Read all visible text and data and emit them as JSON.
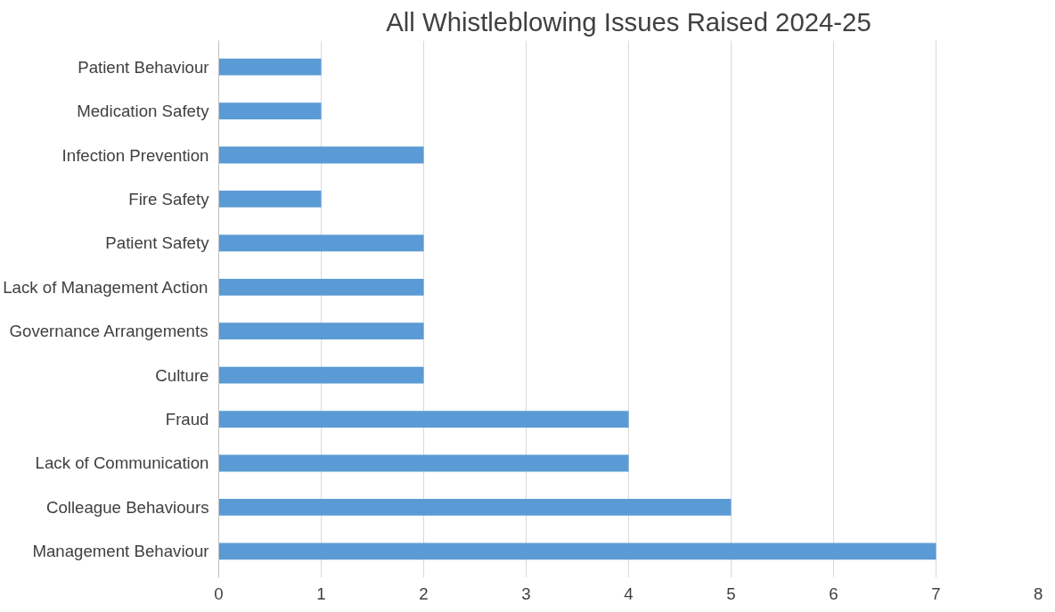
{
  "chart_data": {
    "type": "bar",
    "orientation": "horizontal",
    "title": "All Whistleblowing Issues Raised 2024-25",
    "categories": [
      "Patient Behaviour",
      "Medication Safety",
      "Infection Prevention",
      "Fire Safety",
      "Patient Safety",
      "Lack of Management Action",
      "Governance Arrangements",
      "Culture",
      "Fraud",
      "Lack of Communication",
      "Colleague Behaviours",
      "Management Behaviour"
    ],
    "values": [
      1,
      1,
      2,
      1,
      2,
      2,
      2,
      2,
      4,
      4,
      5,
      7
    ],
    "color": "#5b9bd5",
    "xlim": [
      0,
      8
    ],
    "xticks": [
      0,
      1,
      2,
      3,
      4,
      5,
      6,
      7,
      8
    ],
    "grid": "x"
  }
}
